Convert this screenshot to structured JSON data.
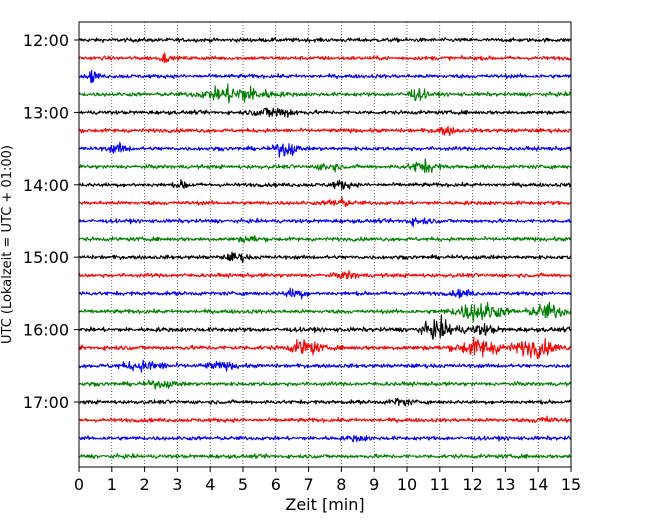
{
  "chart_data": {
    "type": "line",
    "title": "",
    "xlabel": "Zeit  [min]",
    "ylabel": "UTC (Lokalzeit = UTC + 01:00)",
    "xlim": [
      0,
      15
    ],
    "x_ticks": [
      "0",
      "1",
      "2",
      "3",
      "4",
      "5",
      "6",
      "7",
      "8",
      "9",
      "10",
      "11",
      "12",
      "13",
      "14",
      "15"
    ],
    "y_ticks": [
      "12:00",
      "13:00",
      "14:00",
      "15:00",
      "16:00",
      "17:00"
    ],
    "x_grid": "dotted vertical lines at each minute",
    "row_colors": [
      "#000000",
      "#ff0000",
      "#0000ff",
      "#008000"
    ],
    "traces": [
      {
        "start": "12:00",
        "amp": 0.35,
        "events": []
      },
      {
        "start": "12:15",
        "amp": 0.35,
        "events": [
          {
            "t": 2.6,
            "a": 0.8,
            "w": 0.1
          }
        ]
      },
      {
        "start": "12:30",
        "amp": 0.35,
        "events": [
          {
            "t": 0.45,
            "a": 1.3,
            "w": 0.12
          }
        ]
      },
      {
        "start": "12:45",
        "amp": 0.35,
        "events": [
          {
            "t": 4.8,
            "a": 1.5,
            "w": 0.9
          },
          {
            "t": 10.3,
            "a": 0.9,
            "w": 0.3
          }
        ]
      },
      {
        "start": "13:00",
        "amp": 0.35,
        "events": [
          {
            "t": 6.0,
            "a": 0.9,
            "w": 0.6
          }
        ]
      },
      {
        "start": "13:15",
        "amp": 0.35,
        "events": [
          {
            "t": 11.2,
            "a": 0.6,
            "w": 0.3
          }
        ]
      },
      {
        "start": "13:30",
        "amp": 0.35,
        "events": [
          {
            "t": 1.2,
            "a": 0.7,
            "w": 0.3
          },
          {
            "t": 6.3,
            "a": 1.3,
            "w": 0.3
          }
        ]
      },
      {
        "start": "13:45",
        "amp": 0.35,
        "events": [
          {
            "t": 7.6,
            "a": 0.7,
            "w": 0.3
          },
          {
            "t": 10.5,
            "a": 1.0,
            "w": 0.4
          }
        ]
      },
      {
        "start": "14:00",
        "amp": 0.35,
        "events": [
          {
            "t": 3.2,
            "a": 0.6,
            "w": 0.2
          },
          {
            "t": 8.0,
            "a": 0.6,
            "w": 0.3
          }
        ]
      },
      {
        "start": "14:15",
        "amp": 0.35,
        "events": [
          {
            "t": 7.9,
            "a": 0.8,
            "w": 0.3
          }
        ]
      },
      {
        "start": "14:30",
        "amp": 0.35,
        "events": [
          {
            "t": 10.3,
            "a": 0.5,
            "w": 0.4
          }
        ]
      },
      {
        "start": "14:45",
        "amp": 0.35,
        "events": [
          {
            "t": 5.2,
            "a": 0.5,
            "w": 0.3
          }
        ]
      },
      {
        "start": "15:00",
        "amp": 0.35,
        "events": [
          {
            "t": 4.8,
            "a": 0.7,
            "w": 0.3
          }
        ]
      },
      {
        "start": "15:15",
        "amp": 0.35,
        "events": [
          {
            "t": 8.2,
            "a": 0.6,
            "w": 0.3
          }
        ]
      },
      {
        "start": "15:30",
        "amp": 0.35,
        "events": [
          {
            "t": 6.6,
            "a": 0.8,
            "w": 0.3
          },
          {
            "t": 11.7,
            "a": 0.5,
            "w": 0.3
          }
        ]
      },
      {
        "start": "15:45",
        "amp": 0.35,
        "events": [
          {
            "t": 12.2,
            "a": 1.6,
            "w": 0.7
          },
          {
            "t": 14.3,
            "a": 1.3,
            "w": 0.5
          }
        ]
      },
      {
        "start": "16:00",
        "amp": 0.4,
        "events": [
          {
            "t": 11.0,
            "a": 1.5,
            "w": 0.5
          },
          {
            "t": 12.3,
            "a": 0.8,
            "w": 0.4
          }
        ]
      },
      {
        "start": "16:15",
        "amp": 0.4,
        "events": [
          {
            "t": 6.9,
            "a": 1.3,
            "w": 0.4
          },
          {
            "t": 12.2,
            "a": 1.5,
            "w": 0.6
          },
          {
            "t": 13.9,
            "a": 1.4,
            "w": 0.6
          }
        ]
      },
      {
        "start": "16:30",
        "amp": 0.35,
        "events": [
          {
            "t": 2.0,
            "a": 0.7,
            "w": 0.7
          },
          {
            "t": 4.3,
            "a": 0.5,
            "w": 0.5
          }
        ]
      },
      {
        "start": "16:45",
        "amp": 0.35,
        "events": [
          {
            "t": 2.5,
            "a": 0.5,
            "w": 0.4
          }
        ]
      },
      {
        "start": "17:00",
        "amp": 0.35,
        "events": [
          {
            "t": 9.8,
            "a": 0.6,
            "w": 0.3
          }
        ]
      },
      {
        "start": "17:15",
        "amp": 0.35,
        "events": [
          {
            "t": 14.2,
            "a": 0.5,
            "w": 0.3
          }
        ]
      },
      {
        "start": "17:30",
        "amp": 0.35,
        "events": [
          {
            "t": 8.5,
            "a": 0.4,
            "w": 0.3
          }
        ]
      },
      {
        "start": "17:45",
        "amp": 0.35,
        "events": []
      }
    ]
  }
}
